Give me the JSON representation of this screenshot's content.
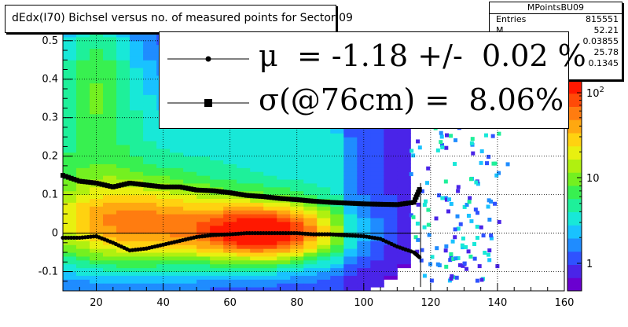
{
  "title": "dEdx(I70) Bichsel versus no. of measured points for Sector 09",
  "stats": {
    "name": "MPointsBU09",
    "rows": [
      {
        "key": "Entries",
        "value": "815551"
      },
      {
        "key": "M",
        "value": "52.21"
      },
      {
        "key": "",
        "value": "0.03855"
      },
      {
        "key": "",
        "value": "25.78"
      },
      {
        "key": "",
        "value": "0.1345"
      }
    ]
  },
  "legend": [
    {
      "text": "μ  = -1.18 +/-  0.02 %",
      "marker": "circle"
    },
    {
      "text": "σ(@76cm) =  8.06%",
      "marker": "square"
    }
  ],
  "chart_data": {
    "type": "heatmap",
    "title": "dEdx(I70) Bichsel versus no. of measured points for Sector 09",
    "xlim": [
      10,
      160
    ],
    "ylim": [
      -0.15,
      0.52
    ],
    "x_ticks": [
      "20",
      "40",
      "60",
      "80",
      "100",
      "120",
      "140",
      "160"
    ],
    "y_ticks": [
      "-0.1",
      "0",
      "0.1",
      "0.2",
      "0.3",
      "0.4",
      "0.5"
    ],
    "z_ticks": [
      "1",
      "10",
      "10^2"
    ],
    "grid": true,
    "log_z": true,
    "series": [
      {
        "marker": "circle",
        "x": [
          10,
          15,
          20,
          25,
          30,
          35,
          40,
          45,
          50,
          55,
          60,
          65,
          70,
          75,
          80,
          85,
          90,
          95,
          100,
          105,
          110,
          115,
          117
        ],
        "y": [
          -0.012,
          -0.012,
          -0.008,
          -0.025,
          -0.045,
          -0.04,
          -0.03,
          -0.02,
          -0.01,
          -0.005,
          -0.003,
          0,
          0,
          0,
          0,
          -0.003,
          -0.003,
          -0.006,
          -0.008,
          -0.015,
          -0.035,
          -0.05,
          -0.065
        ]
      },
      {
        "marker": "square",
        "x": [
          10,
          15,
          20,
          25,
          30,
          35,
          40,
          45,
          50,
          55,
          60,
          65,
          70,
          75,
          80,
          85,
          90,
          95,
          100,
          105,
          110,
          115,
          117
        ],
        "y": [
          0.15,
          0.135,
          0.13,
          0.12,
          0.13,
          0.125,
          0.12,
          0.12,
          0.112,
          0.11,
          0.105,
          0.098,
          0.095,
          0.09,
          0.087,
          0.083,
          0.08,
          0.078,
          0.076,
          0.075,
          0.074,
          0.08,
          0.12
        ]
      }
    ]
  }
}
